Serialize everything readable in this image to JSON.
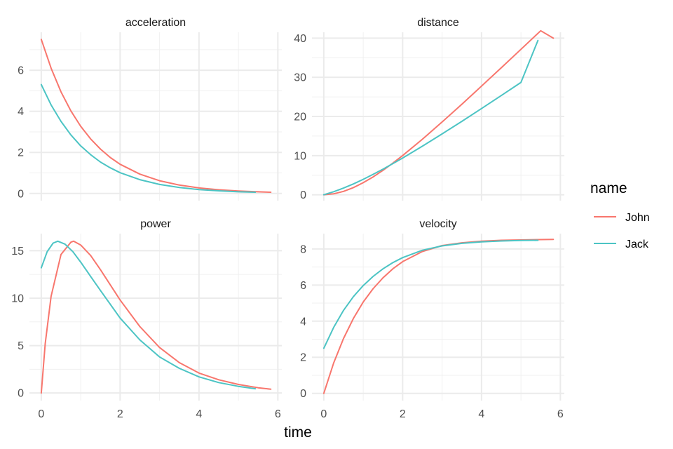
{
  "chart_data": {
    "type": "line",
    "xlabel": "time",
    "legend": {
      "title": "name",
      "position": "right",
      "entries": [
        {
          "label": "John",
          "color": "#F8766D"
        },
        {
          "label": "Jack",
          "color": "#4CC4C4"
        }
      ]
    },
    "grid": true,
    "x_ticks": [
      "0",
      "2",
      "4",
      "6"
    ],
    "facets": [
      {
        "title": "acceleration",
        "xlim": [
          -0.3,
          6.1
        ],
        "ylim": [
          -0.35,
          7.85
        ],
        "y_ticks": [
          "0",
          "2",
          "4",
          "6"
        ],
        "y_tick_values": [
          0,
          2,
          4,
          6
        ],
        "series": [
          {
            "name": "John",
            "x": [
              0,
              0.25,
              0.5,
              0.75,
              1,
              1.25,
              1.5,
              1.75,
              2,
              2.5,
              3,
              3.5,
              4,
              4.5,
              5,
              5.5,
              5.82
            ],
            "y": [
              7.5,
              6.1,
              4.95,
              4.02,
              3.27,
              2.66,
              2.16,
              1.75,
              1.42,
              0.94,
              0.62,
              0.41,
              0.27,
              0.18,
              0.12,
              0.08,
              0.06
            ]
          },
          {
            "name": "Jack",
            "x": [
              0,
              0.25,
              0.5,
              0.75,
              1,
              1.25,
              1.5,
              1.75,
              2,
              2.5,
              3,
              3.5,
              4,
              4.5,
              5,
              5.43
            ],
            "y": [
              5.3,
              4.31,
              3.51,
              2.85,
              2.32,
              1.89,
              1.53,
              1.25,
              1.01,
              0.67,
              0.44,
              0.29,
              0.19,
              0.13,
              0.08,
              0.06
            ]
          }
        ]
      },
      {
        "title": "distance",
        "xlim": [
          -0.3,
          6.1
        ],
        "ylim": [
          -1.5,
          41.5
        ],
        "y_ticks": [
          "0",
          "10",
          "20",
          "30",
          "40"
        ],
        "y_tick_values": [
          0,
          10,
          20,
          30,
          40
        ],
        "series": [
          {
            "name": "John",
            "x": [
              0,
              0.25,
              0.5,
              0.75,
              1,
              1.25,
              1.5,
              1.75,
              2,
              2.5,
              3,
              3.5,
              4,
              4.5,
              5,
              5.5,
              5.82
            ],
            "y": [
              0,
              0.23,
              0.86,
              1.83,
              3.08,
              4.56,
              6.24,
              8.07,
              10.02,
              14.18,
              18.58,
              23.12,
              27.75,
              32.43,
              37.15,
              41.9,
              40.0
            ]
          },
          {
            "name": "Jack",
            "x": [
              0,
              0.25,
              0.5,
              0.75,
              1,
              1.25,
              1.5,
              1.75,
              2,
              2.5,
              3,
              3.5,
              4,
              4.5,
              5,
              5.43
            ],
            "y": [
              0,
              0.77,
              1.7,
              2.77,
              3.94,
              5.21,
              6.54,
              7.94,
              9.39,
              12.4,
              15.53,
              18.75,
              22.02,
              25.34,
              28.69,
              39.4
            ]
          }
        ]
      },
      {
        "title": "power",
        "xlim": [
          -0.3,
          6.1
        ],
        "ylim": [
          -0.8,
          16.8
        ],
        "y_ticks": [
          "0",
          "5",
          "10",
          "15"
        ],
        "y_tick_values": [
          0,
          5,
          10,
          15
        ],
        "series": [
          {
            "name": "John",
            "x": [
              0,
              0.1,
              0.25,
              0.5,
              0.75,
              0.82,
              1,
              1.25,
              1.5,
              2,
              2.5,
              3,
              3.5,
              4,
              4.5,
              5,
              5.5,
              5.82
            ],
            "y": [
              0,
              5.2,
              10.2,
              14.6,
              15.9,
              16.0,
              15.6,
              14.5,
              13.0,
              9.8,
              7.0,
              4.8,
              3.2,
              2.1,
              1.4,
              0.9,
              0.55,
              0.4
            ]
          },
          {
            "name": "Jack",
            "x": [
              0,
              0.15,
              0.3,
              0.42,
              0.6,
              0.8,
              1,
              1.25,
              1.5,
              2,
              2.5,
              3,
              3.5,
              4,
              4.5,
              5,
              5.43
            ],
            "y": [
              13.2,
              14.9,
              15.8,
              16.0,
              15.7,
              14.9,
              13.8,
              12.3,
              10.8,
              7.9,
              5.6,
              3.8,
              2.6,
              1.7,
              1.1,
              0.7,
              0.45
            ]
          }
        ]
      },
      {
        "title": "velocity",
        "xlim": [
          -0.3,
          6.1
        ],
        "ylim": [
          -0.4,
          8.85
        ],
        "y_ticks": [
          "0",
          "2",
          "4",
          "6",
          "8"
        ],
        "y_tick_values": [
          0,
          2,
          4,
          6,
          8
        ],
        "series": [
          {
            "name": "John",
            "x": [
              0,
              0.25,
              0.5,
              0.75,
              1,
              1.25,
              1.5,
              1.75,
              2,
              2.5,
              3,
              3.5,
              4,
              4.5,
              5,
              5.5,
              5.82
            ],
            "y": [
              0,
              1.68,
              3.04,
              4.15,
              5.06,
              5.8,
              6.4,
              6.9,
              7.3,
              7.86,
              8.19,
              8.34,
              8.43,
              8.48,
              8.5,
              8.52,
              8.53
            ]
          },
          {
            "name": "Jack",
            "x": [
              0,
              0.25,
              0.5,
              0.75,
              1,
              1.25,
              1.5,
              1.75,
              2,
              2.5,
              3,
              3.5,
              4,
              4.5,
              5,
              5.43
            ],
            "y": [
              2.5,
              3.65,
              4.6,
              5.36,
              5.97,
              6.48,
              6.9,
              7.24,
              7.52,
              7.93,
              8.17,
              8.31,
              8.39,
              8.44,
              8.47,
              8.48
            ]
          }
        ]
      }
    ]
  }
}
